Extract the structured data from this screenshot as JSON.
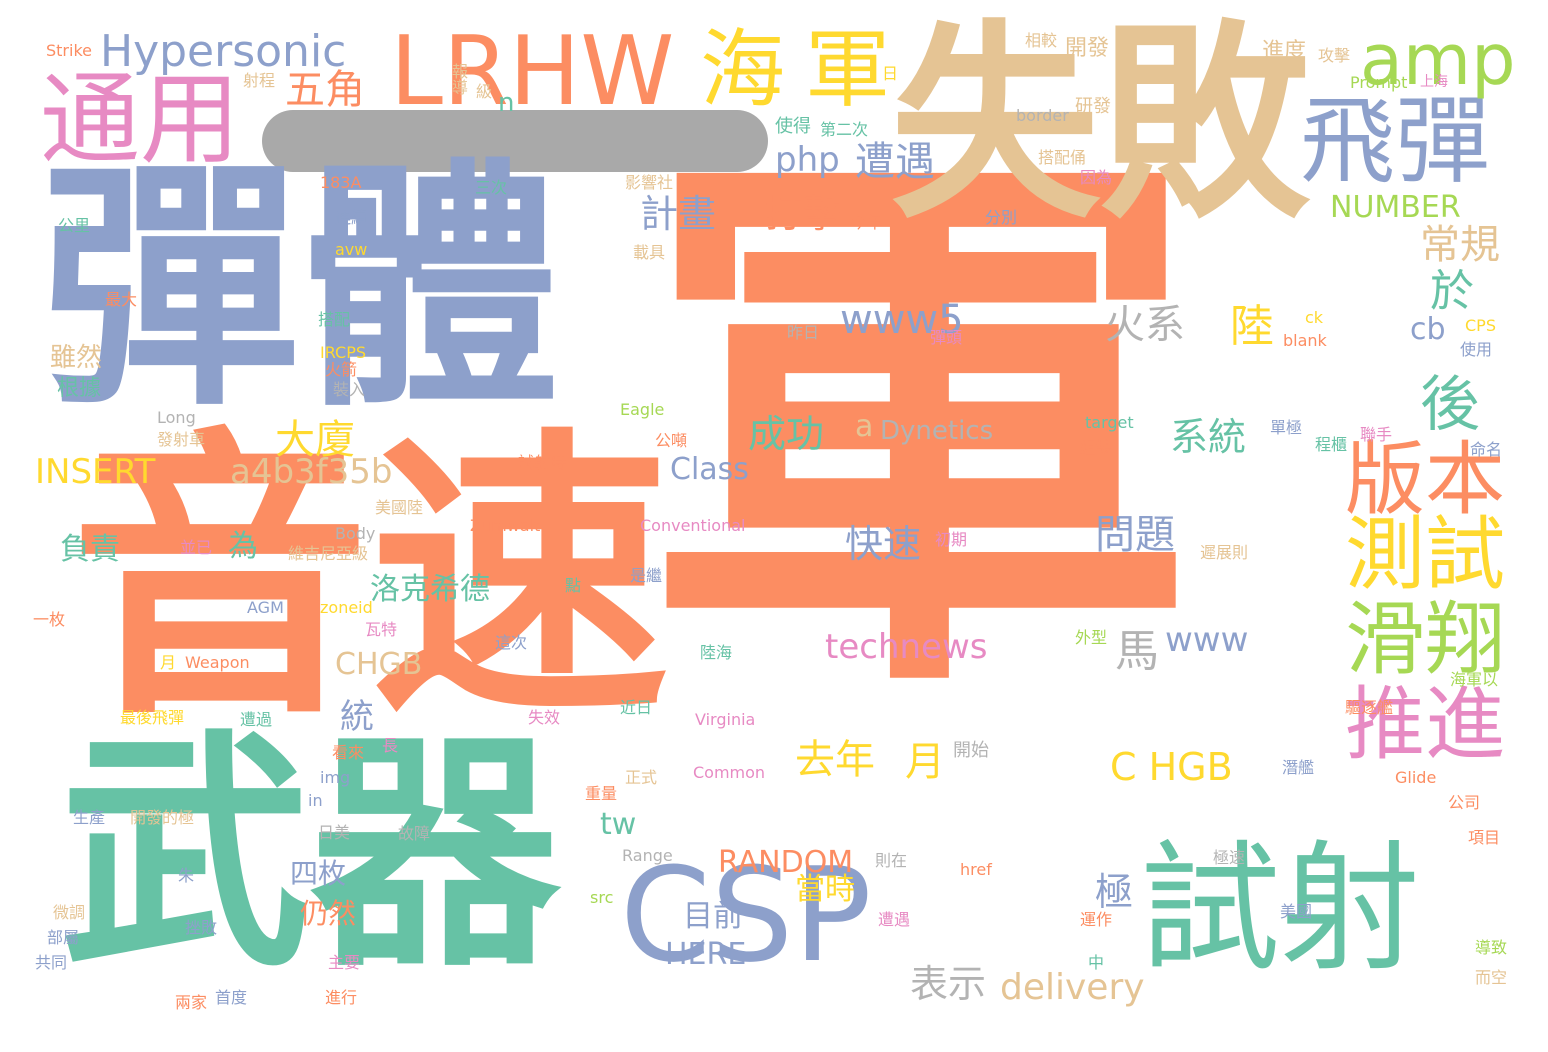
{
  "palette": {
    "orange": "#fc8d62",
    "slate": "#8da0cb",
    "green": "#66c2a5",
    "tan": "#e5c494",
    "pink": "#e78ac3",
    "lime": "#a6d854",
    "yellow": "#ffd92f",
    "gray": "#b3b3b3",
    "redaction": "#a9a9a9"
  },
  "words": [
    {
      "text": "軍",
      "color": "orange"
    },
    {
      "text": "音速",
      "color": "orange"
    },
    {
      "text": "彈體",
      "color": "slate"
    },
    {
      "text": "武器",
      "color": "green"
    },
    {
      "text": "失敗",
      "color": "tan"
    },
    {
      "text": "CSP",
      "color": "slate"
    },
    {
      "text": "試射",
      "color": "green"
    },
    {
      "text": "LRHW",
      "color": "orange"
    },
    {
      "text": "通用",
      "color": "pink"
    },
    {
      "text": "飛彈",
      "color": "slate"
    },
    {
      "text": "海",
      "color": "yellow"
    },
    {
      "text": "軍",
      "color": "yellow"
    },
    {
      "text": "amp",
      "color": "lime"
    },
    {
      "text": "Hypersonic",
      "color": "slate"
    },
    {
      "text": "版本",
      "color": "orange"
    },
    {
      "text": "測試",
      "color": "yellow"
    },
    {
      "text": "滑翔",
      "color": "lime"
    },
    {
      "text": "推進",
      "color": "pink"
    },
    {
      "text": "後",
      "color": "green"
    },
    {
      "text": "五角",
      "color": "orange"
    },
    {
      "text": "php",
      "color": "slate"
    },
    {
      "text": "遭遇",
      "color": "slate"
    },
    {
      "text": "打擊",
      "color": "orange"
    },
    {
      "text": "計畫",
      "color": "slate"
    },
    {
      "text": "常規",
      "color": "tan"
    },
    {
      "text": "於",
      "color": "green"
    },
    {
      "text": "NUMBER",
      "color": "lime"
    },
    {
      "text": "www5",
      "color": "slate"
    },
    {
      "text": "火系",
      "color": "gray"
    },
    {
      "text": "陸",
      "color": "yellow"
    },
    {
      "text": "cb",
      "color": "slate"
    },
    {
      "text": "大廈",
      "color": "yellow"
    },
    {
      "text": "成功",
      "color": "green"
    },
    {
      "text": "a",
      "color": "tan"
    },
    {
      "text": "Dynetics",
      "color": "gray"
    },
    {
      "text": "系統",
      "color": "green"
    },
    {
      "text": "INSERT",
      "color": "yellow"
    },
    {
      "text": "a4b3f35b",
      "color": "tan"
    },
    {
      "text": "Class",
      "color": "slate"
    },
    {
      "text": "快速",
      "color": "slate"
    },
    {
      "text": "問題",
      "color": "slate"
    },
    {
      "text": "負責",
      "color": "green"
    },
    {
      "text": "為",
      "color": "green"
    },
    {
      "text": "洛克希德",
      "color": "green"
    },
    {
      "text": "technews",
      "color": "pink"
    },
    {
      "text": "www",
      "color": "slate"
    },
    {
      "text": "馬",
      "color": "gray"
    },
    {
      "text": "CHGB",
      "color": "tan"
    },
    {
      "text": "統",
      "color": "slate"
    },
    {
      "text": "去年",
      "color": "yellow"
    },
    {
      "text": "月",
      "color": "yellow"
    },
    {
      "text": "C HGB",
      "color": "yellow"
    },
    {
      "text": "tw",
      "color": "green"
    },
    {
      "text": "RANDOM",
      "color": "orange"
    },
    {
      "text": "四枚",
      "color": "slate"
    },
    {
      "text": "仍然",
      "color": "orange"
    },
    {
      "text": "目前",
      "color": "slate"
    },
    {
      "text": "HERE",
      "color": "slate"
    },
    {
      "text": "當時",
      "color": "yellow"
    },
    {
      "text": "極",
      "color": "slate"
    },
    {
      "text": "表示",
      "color": "gray"
    },
    {
      "text": "delivery",
      "color": "tan"
    },
    {
      "text": "n",
      "color": "green"
    },
    {
      "text": "雖然",
      "color": "tan"
    },
    {
      "text": "根據",
      "color": "green"
    },
    {
      "text": "Strike",
      "color": "orange"
    },
    {
      "text": "射程",
      "color": "tan"
    },
    {
      "text": "報導",
      "color": "tan"
    },
    {
      "text": "級",
      "color": "tan"
    },
    {
      "text": "日",
      "color": "yellow"
    },
    {
      "text": "相較",
      "color": "tan"
    },
    {
      "text": "開發",
      "color": "tan"
    },
    {
      "text": "進度",
      "color": "tan"
    },
    {
      "text": "攻擊",
      "color": "tan"
    },
    {
      "text": "Prompt",
      "color": "lime"
    },
    {
      "text": "上海",
      "color": "pink"
    },
    {
      "text": "研發",
      "color": "tan"
    },
    {
      "text": "border",
      "color": "gray"
    },
    {
      "text": "第二次",
      "color": "green"
    },
    {
      "text": "使得",
      "color": "green"
    },
    {
      "text": "搭配俑",
      "color": "tan"
    },
    {
      "text": "因為",
      "color": "pink"
    },
    {
      "text": "183A",
      "color": "orange"
    },
    {
      "text": "三次",
      "color": "green"
    },
    {
      "text": "影響社",
      "color": "tan"
    },
    {
      "text": "連續",
      "color": "slate"
    },
    {
      "text": "公里",
      "color": "green"
    },
    {
      "text": "avw",
      "color": "yellow"
    },
    {
      "text": "最大",
      "color": "orange"
    },
    {
      "text": "載具",
      "color": "tan"
    },
    {
      "text": "今年",
      "color": "orange"
    },
    {
      "text": "分別",
      "color": "slate"
    },
    {
      "text": "搭配",
      "color": "green"
    },
    {
      "text": "IRCPS",
      "color": "yellow"
    },
    {
      "text": "火箭",
      "color": "orange"
    },
    {
      "text": "裝入",
      "color": "gray"
    },
    {
      "text": "昨日",
      "color": "gray"
    },
    {
      "text": "彈頭",
      "color": "pink"
    },
    {
      "text": "ck",
      "color": "yellow"
    },
    {
      "text": "blank",
      "color": "orange"
    },
    {
      "text": "CPS",
      "color": "yellow"
    },
    {
      "text": "使用",
      "color": "slate"
    },
    {
      "text": "Long",
      "color": "gray"
    },
    {
      "text": "發射車",
      "color": "tan"
    },
    {
      "text": "Eagle",
      "color": "lime"
    },
    {
      "text": "公噸",
      "color": "orange"
    },
    {
      "text": "target",
      "color": "green"
    },
    {
      "text": "組裝",
      "color": "orange"
    },
    {
      "text": "單極",
      "color": "slate"
    },
    {
      "text": "程櫃",
      "color": "green"
    },
    {
      "text": "聯手",
      "color": "pink"
    },
    {
      "text": "命名",
      "color": "slate"
    },
    {
      "text": "試射時",
      "color": "orange"
    },
    {
      "text": "美國陸",
      "color": "tan"
    },
    {
      "text": "Body",
      "color": "gray"
    },
    {
      "text": "Zumwalt",
      "color": "orange"
    },
    {
      "text": "Conventional",
      "color": "pink"
    },
    {
      "text": "初期",
      "color": "pink"
    },
    {
      "text": "遲展則",
      "color": "tan"
    },
    {
      "text": "並已",
      "color": "pink"
    },
    {
      "text": "維吉尼亞級",
      "color": "tan"
    },
    {
      "text": "點",
      "color": "green"
    },
    {
      "text": "是繼",
      "color": "slate"
    },
    {
      "text": "AGM",
      "color": "slate"
    },
    {
      "text": "zoneid",
      "color": "yellow"
    },
    {
      "text": "一枚",
      "color": "orange"
    },
    {
      "text": "瓦特",
      "color": "pink"
    },
    {
      "text": "這次",
      "color": "slate"
    },
    {
      "text": "外型",
      "color": "lime"
    },
    {
      "text": "陸海",
      "color": "green"
    },
    {
      "text": "月",
      "color": "yellow"
    },
    {
      "text": "Weapon",
      "color": "orange"
    },
    {
      "text": "遭過",
      "color": "green"
    },
    {
      "text": "近日",
      "color": "green"
    },
    {
      "text": "Virginia",
      "color": "pink"
    },
    {
      "text": "驅逐艦",
      "color": "orange"
    },
    {
      "text": "海軍以",
      "color": "lime"
    },
    {
      "text": "最後飛彈",
      "color": "yellow"
    },
    {
      "text": "失效",
      "color": "pink"
    },
    {
      "text": "開始",
      "color": "gray"
    },
    {
      "text": "Common",
      "color": "pink"
    },
    {
      "text": "Glide",
      "color": "orange"
    },
    {
      "text": "潛艦",
      "color": "slate"
    },
    {
      "text": "img",
      "color": "slate"
    },
    {
      "text": "看來",
      "color": "orange"
    },
    {
      "text": "長",
      "color": "pink"
    },
    {
      "text": "in",
      "color": "slate"
    },
    {
      "text": "日美",
      "color": "gray"
    },
    {
      "text": "故障",
      "color": "gray"
    },
    {
      "text": "重量",
      "color": "orange"
    },
    {
      "text": "正式",
      "color": "tan"
    },
    {
      "text": "生產",
      "color": "slate"
    },
    {
      "text": "開發的極",
      "color": "tan"
    },
    {
      "text": "Range",
      "color": "gray"
    },
    {
      "text": "朱",
      "color": "slate"
    },
    {
      "text": "則在",
      "color": "gray"
    },
    {
      "text": "href",
      "color": "orange"
    },
    {
      "text": "極速",
      "color": "gray"
    },
    {
      "text": "挫敗",
      "color": "slate"
    },
    {
      "text": "src",
      "color": "lime"
    },
    {
      "text": "運作",
      "color": "orange"
    },
    {
      "text": "美國",
      "color": "slate"
    },
    {
      "text": "微調",
      "color": "tan"
    },
    {
      "text": "部屬",
      "color": "slate"
    },
    {
      "text": "共同",
      "color": "slate"
    },
    {
      "text": "兩家",
      "color": "orange"
    },
    {
      "text": "首度",
      "color": "slate"
    },
    {
      "text": "進行",
      "color": "orange"
    },
    {
      "text": "主要",
      "color": "pink"
    },
    {
      "text": "導致",
      "color": "lime"
    },
    {
      "text": "而空",
      "color": "tan"
    },
    {
      "text": "中",
      "color": "green"
    },
    {
      "text": "項目",
      "color": "orange"
    },
    {
      "text": "公司",
      "color": "orange"
    },
    {
      "text": "遭遇",
      "color": "pink"
    }
  ]
}
